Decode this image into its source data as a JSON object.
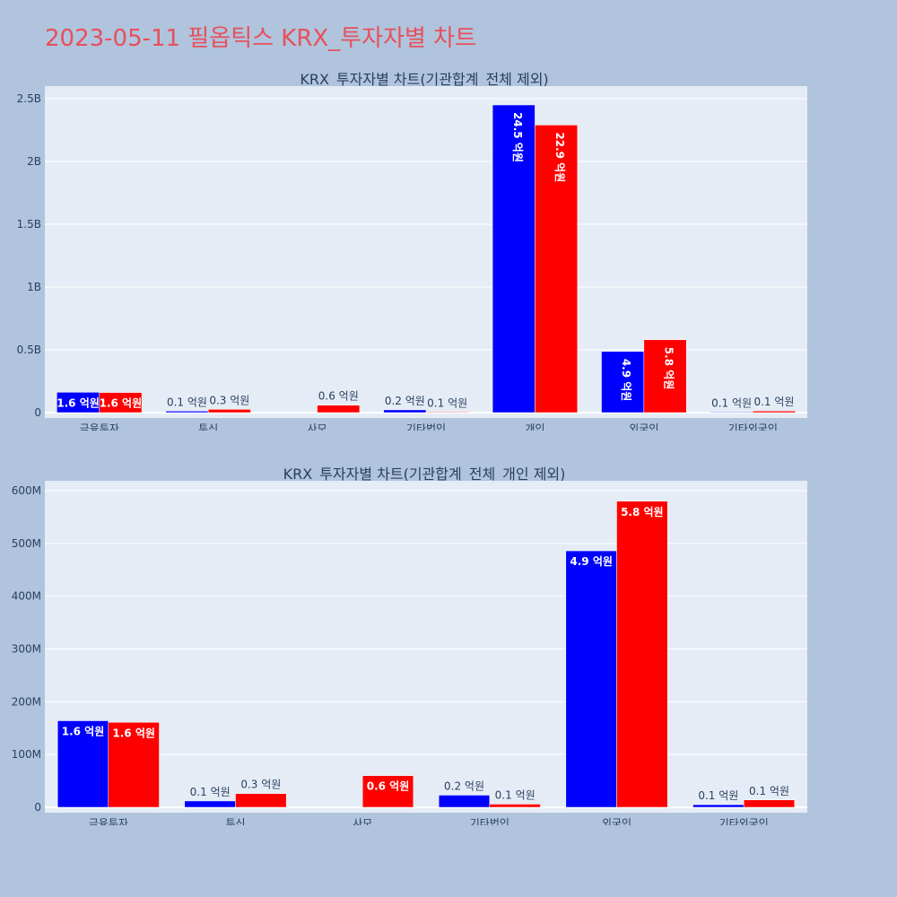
{
  "page": {
    "title": "2023-05-11 필옵틱스 KRX_투자자별 차트"
  },
  "colors": {
    "series_a": "#0000ff",
    "series_b": "#ff0000",
    "title": "#e8505b",
    "plot_bg": "#e5ecf6",
    "paper_bg": "#b0c4de"
  },
  "chart_data": [
    {
      "type": "bar",
      "title": "KRX_투자자별 차트(기관합계_전체 제외)",
      "categories": [
        "금융투자",
        "투신",
        "사모",
        "기타법인",
        "개인",
        "외국인",
        "기타외국인"
      ],
      "ylim": [
        0,
        2500000000
      ],
      "yticks": [
        0,
        500000000,
        1000000000,
        1500000000,
        2000000000,
        2500000000
      ],
      "ytick_labels": [
        "0",
        "0.5B",
        "1B",
        "1.5B",
        "2B",
        "2.5B"
      ],
      "grid": true,
      "series": [
        {
          "values": [
            162000000,
            12000000,
            0,
            22000000,
            2450000000,
            487000000,
            5000000
          ],
          "labels": [
            "1.6 억원",
            "0.1 억원",
            "",
            "0.2 억원",
            "24.5 억원",
            "4.9 억원",
            "0.1 억원"
          ]
        },
        {
          "values": [
            160000000,
            26000000,
            59000000,
            5000000,
            2290000000,
            580000000,
            13000000
          ],
          "labels": [
            "1.6 억원",
            "0.3 억원",
            "0.6 억원",
            "0.1 억원",
            "22.9 억원",
            "5.8 억원",
            "0.1 억원"
          ]
        }
      ]
    },
    {
      "type": "bar",
      "title": "KRX_투자자별 차트(기관합계_전체_개인 제외)",
      "categories": [
        "금융투자",
        "투신",
        "사모",
        "기타법인",
        "외국인",
        "기타외국인"
      ],
      "ylim": [
        0,
        600000000
      ],
      "yticks": [
        0,
        100000000,
        200000000,
        300000000,
        400000000,
        500000000,
        600000000
      ],
      "ytick_labels": [
        "0",
        "100M",
        "200M",
        "300M",
        "400M",
        "500M",
        "600M"
      ],
      "grid": true,
      "series": [
        {
          "values": [
            164000000,
            12000000,
            0,
            23000000,
            486000000,
            5000000
          ],
          "labels": [
            "1.6 억원",
            "0.1 억원",
            "",
            "0.2 억원",
            "4.9 억원",
            "0.1 억원"
          ]
        },
        {
          "values": [
            161000000,
            26000000,
            60000000,
            6000000,
            580000000,
            14000000
          ],
          "labels": [
            "1.6 억원",
            "0.3 억원",
            "0.6 억원",
            "0.1 억원",
            "5.8 억원",
            "0.1 억원"
          ]
        }
      ]
    }
  ]
}
